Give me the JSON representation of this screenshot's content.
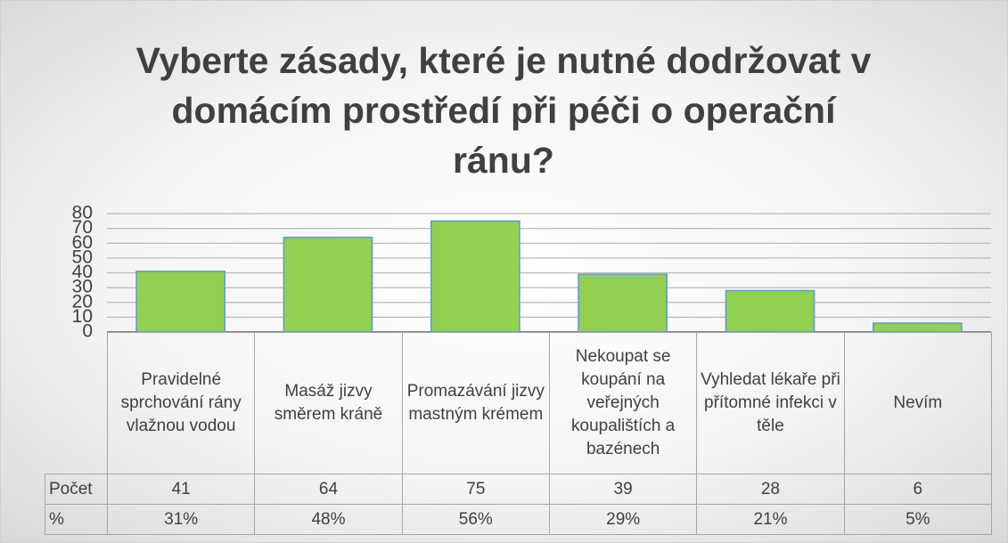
{
  "chart_data": {
    "type": "bar",
    "title": "Vyberte zásady, které je nutné dodržovat v domácím prostředí při péči o operační ránu?",
    "categories": [
      "Pravidelné sprchování rány vlažnou vodou",
      "Masáž jizvy směrem kráně",
      "Promazávání jizvy mastným krémem",
      "Nekoupat se koupání na veřejných koupalištích a bazénech",
      "Vyhledat lékaře při přítomné infekci v těle",
      "Nevím"
    ],
    "series": [
      {
        "name": "Počet",
        "color": "#92d050",
        "values": [
          41,
          64,
          75,
          39,
          28,
          6
        ]
      },
      {
        "name": "%",
        "values": [
          31,
          48,
          56,
          29,
          21,
          5
        ],
        "value_labels": [
          "31%",
          "48%",
          "56%",
          "29%",
          "21%",
          "5%"
        ]
      }
    ],
    "ylim": [
      0,
      80
    ],
    "yticks": [
      0,
      10,
      20,
      30,
      40,
      50,
      60,
      70,
      80
    ],
    "grid": true
  }
}
